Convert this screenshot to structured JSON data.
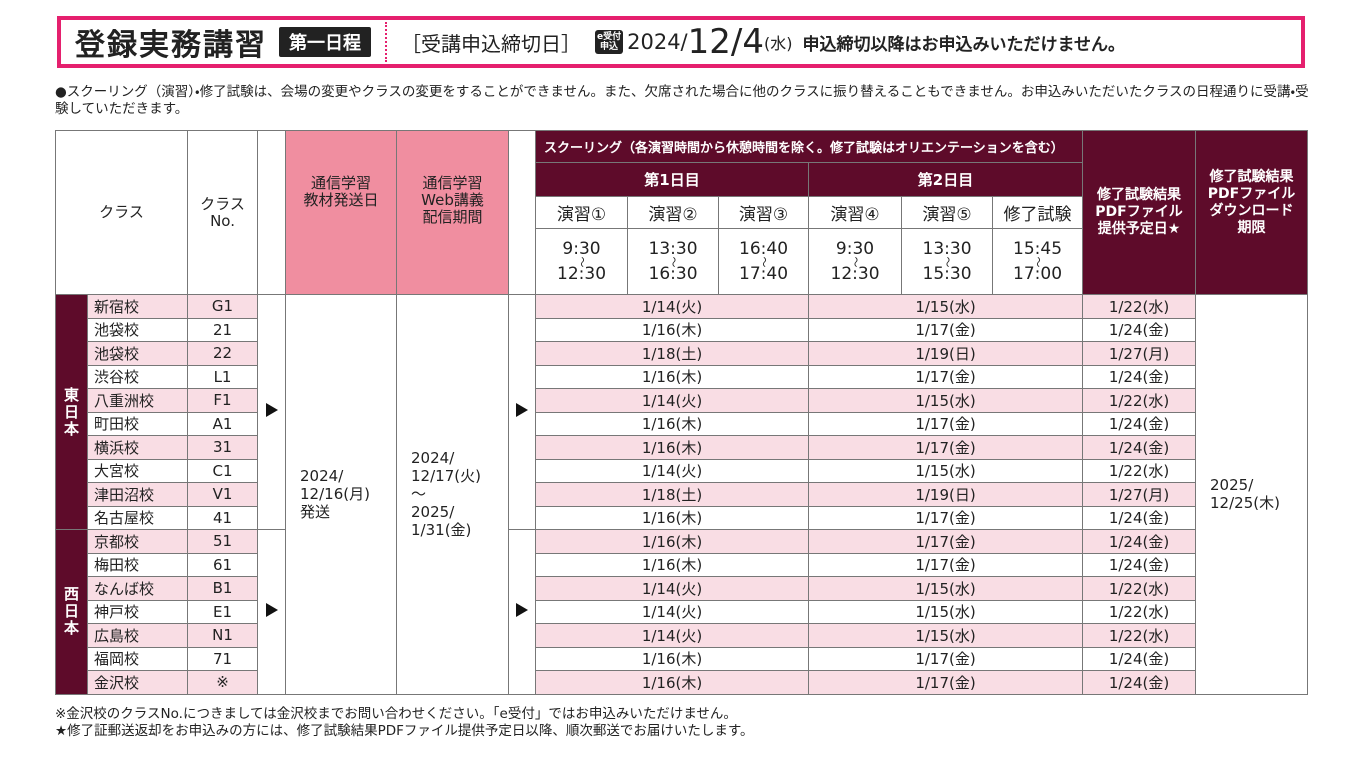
{
  "header": {
    "title": "登録実務講習",
    "badge": "第一日程",
    "deadline_label": "受講申込締切日",
    "e_badge": [
      "e受付",
      "申込"
    ],
    "deadline_year": "2024/",
    "deadline_date": "12/4",
    "deadline_weekday": "(水)",
    "deadline_note": "申込締切以降はお申込みいただけません。"
  },
  "notice": "●スクーリング（演習）・修了試験は、会場の変更やクラスの変更をすることができません。また、欠席された場合に他のクラスに振り替えることもできません。お申込みいただいたクラスの日程通りに受講・受験していただきます。",
  "table": {
    "headers": {
      "class": "クラス",
      "class_no": [
        "クラス",
        "No."
      ],
      "ship": [
        "通信学習",
        "教材発送日"
      ],
      "web": [
        "通信学習",
        "Web講義",
        "配信期間"
      ],
      "schooling": "スクーリング（各演習時間から休憩時間を除く。修了試験はオリエンテーションを含む）",
      "day1": "第1日目",
      "day2": "第2日目",
      "sessions": [
        {
          "name": "演習①",
          "start": "9:30",
          "end": "12:30"
        },
        {
          "name": "演習②",
          "start": "13:30",
          "end": "16:30"
        },
        {
          "name": "演習③",
          "start": "16:40",
          "end": "17:40"
        },
        {
          "name": "演習④",
          "start": "9:30",
          "end": "12:30"
        },
        {
          "name": "演習⑤",
          "start": "13:30",
          "end": "15:30"
        },
        {
          "name": "修了試験",
          "start": "15:45",
          "end": "17:00"
        }
      ],
      "time_separator": "〜",
      "pdf": [
        "修了試験結果",
        "PDFファイル",
        "提供予定日★"
      ],
      "download": [
        "修了試験結果",
        "PDFファイル",
        "ダウンロード",
        "期限"
      ]
    },
    "ship_date": [
      "2024/",
      "12/16(月)",
      "発送"
    ],
    "web_period": [
      "2024/",
      "12/17(火)",
      "〜",
      "2025/",
      "1/31(金)"
    ],
    "download_deadline": [
      "2025/",
      "12/25(木)"
    ],
    "regions": [
      {
        "name": "東日本",
        "rows": [
          {
            "school": "新宿校",
            "no": "G1",
            "day1": "1/14(火)",
            "day2": "1/15(水)",
            "pdf": "1/22(水)"
          },
          {
            "school": "池袋校",
            "no": "21",
            "day1": "1/16(木)",
            "day2": "1/17(金)",
            "pdf": "1/24(金)"
          },
          {
            "school": "池袋校",
            "no": "22",
            "day1": "1/18(土)",
            "day2": "1/19(日)",
            "pdf": "1/27(月)"
          },
          {
            "school": "渋谷校",
            "no": "L1",
            "day1": "1/16(木)",
            "day2": "1/17(金)",
            "pdf": "1/24(金)"
          },
          {
            "school": "八重洲校",
            "no": "F1",
            "day1": "1/14(火)",
            "day2": "1/15(水)",
            "pdf": "1/22(水)"
          },
          {
            "school": "町田校",
            "no": "A1",
            "day1": "1/16(木)",
            "day2": "1/17(金)",
            "pdf": "1/24(金)"
          },
          {
            "school": "横浜校",
            "no": "31",
            "day1": "1/16(木)",
            "day2": "1/17(金)",
            "pdf": "1/24(金)"
          },
          {
            "school": "大宮校",
            "no": "C1",
            "day1": "1/14(火)",
            "day2": "1/15(水)",
            "pdf": "1/22(水)"
          },
          {
            "school": "津田沼校",
            "no": "V1",
            "day1": "1/18(土)",
            "day2": "1/19(日)",
            "pdf": "1/27(月)"
          },
          {
            "school": "名古屋校",
            "no": "41",
            "day1": "1/16(木)",
            "day2": "1/17(金)",
            "pdf": "1/24(金)"
          }
        ]
      },
      {
        "name": "西日本",
        "rows": [
          {
            "school": "京都校",
            "no": "51",
            "day1": "1/16(木)",
            "day2": "1/17(金)",
            "pdf": "1/24(金)"
          },
          {
            "school": "梅田校",
            "no": "61",
            "day1": "1/16(木)",
            "day2": "1/17(金)",
            "pdf": "1/24(金)"
          },
          {
            "school": "なんば校",
            "no": "B1",
            "day1": "1/14(火)",
            "day2": "1/15(水)",
            "pdf": "1/22(水)"
          },
          {
            "school": "神戸校",
            "no": "E1",
            "day1": "1/14(火)",
            "day2": "1/15(水)",
            "pdf": "1/22(水)"
          },
          {
            "school": "広島校",
            "no": "N1",
            "day1": "1/14(火)",
            "day2": "1/15(水)",
            "pdf": "1/22(水)"
          },
          {
            "school": "福岡校",
            "no": "71",
            "day1": "1/16(木)",
            "day2": "1/17(金)",
            "pdf": "1/24(金)"
          },
          {
            "school": "金沢校",
            "no": "※",
            "day1": "1/16(木)",
            "day2": "1/17(金)",
            "pdf": "1/24(金)"
          }
        ]
      }
    ]
  },
  "footnotes": [
    "※金沢校のクラスNo.につきましては金沢校までお問い合わせください。「e受付」ではお申込みいただけません。",
    "★修了証郵送返却をお申込みの方には、修了試験結果PDFファイル提供予定日以降、順次郵送でお届けいたします。"
  ]
}
